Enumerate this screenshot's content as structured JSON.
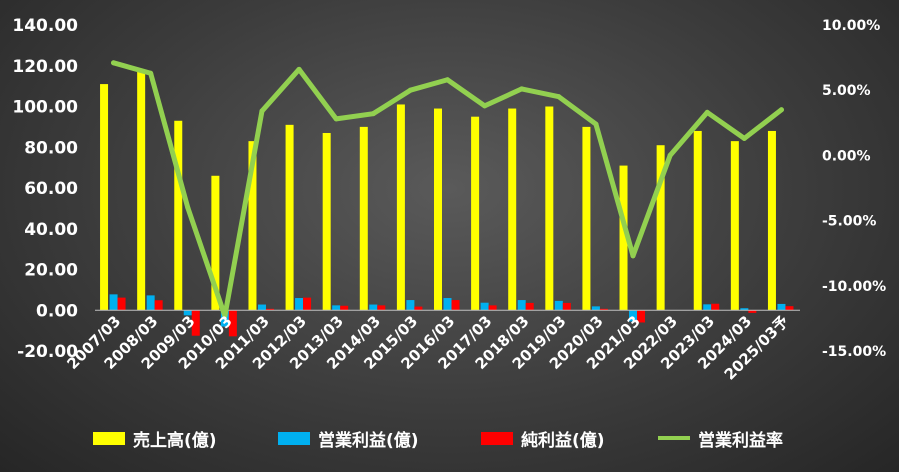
{
  "chart_data": {
    "type": "bar",
    "categories": [
      "2007/03",
      "2008/03",
      "2009/03",
      "2010/03",
      "2011/03",
      "2012/03",
      "2013/03",
      "2014/03",
      "2015/03",
      "2016/03",
      "2017/03",
      "2018/03",
      "2019/03",
      "2020/03",
      "2021/03",
      "2022/03",
      "2023/03",
      "2024/03",
      "2025/03予"
    ],
    "series": [
      {
        "name": "売上高(億)",
        "type": "bar",
        "axis": "left",
        "color": "#ffff00",
        "values": [
          111,
          117,
          93,
          66,
          83,
          91,
          87,
          90,
          101,
          99,
          95,
          99,
          100,
          90,
          71,
          81,
          88,
          83,
          88
        ]
      },
      {
        "name": "営業利益(億)",
        "type": "bar",
        "axis": "left",
        "color": "#00b0f0",
        "values": [
          7.8,
          7.3,
          -2.5,
          -8.0,
          2.8,
          6.0,
          2.4,
          2.8,
          5.0,
          6.0,
          3.7,
          5.0,
          4.6,
          1.9,
          -5.5,
          0.0,
          2.9,
          1.0,
          3.1
        ]
      },
      {
        "name": "純利益(億)",
        "type": "bar",
        "axis": "left",
        "color": "#ff0000",
        "values": [
          6.2,
          4.9,
          -12.5,
          -12.8,
          0.7,
          6.2,
          2.2,
          2.4,
          1.8,
          5.0,
          2.4,
          3.6,
          3.6,
          0.7,
          -6.0,
          0.0,
          3.2,
          -1.3,
          2.0
        ]
      },
      {
        "name": "営業利益率",
        "type": "line",
        "axis": "right",
        "color": "#92d050",
        "values": [
          7.1,
          6.3,
          -4.0,
          -12.3,
          3.4,
          6.6,
          2.8,
          3.2,
          5.0,
          5.8,
          3.8,
          5.1,
          4.5,
          2.4,
          -7.7,
          0.0,
          3.3,
          1.3,
          3.5
        ]
      }
    ],
    "y_left": {
      "min": -20,
      "max": 140,
      "step": 20,
      "tick_labels": [
        "-20.00",
        "0.00",
        "20.00",
        "40.00",
        "60.00",
        "80.00",
        "100.00",
        "120.00",
        "140.00"
      ]
    },
    "y_right": {
      "min": -15,
      "max": 10,
      "step": 5,
      "tick_labels": [
        "-15.00%",
        "-10.00%",
        "-5.00%",
        "0.00%",
        "5.00%",
        "10.00%"
      ]
    },
    "grid": false,
    "legend_position": "bottom"
  }
}
